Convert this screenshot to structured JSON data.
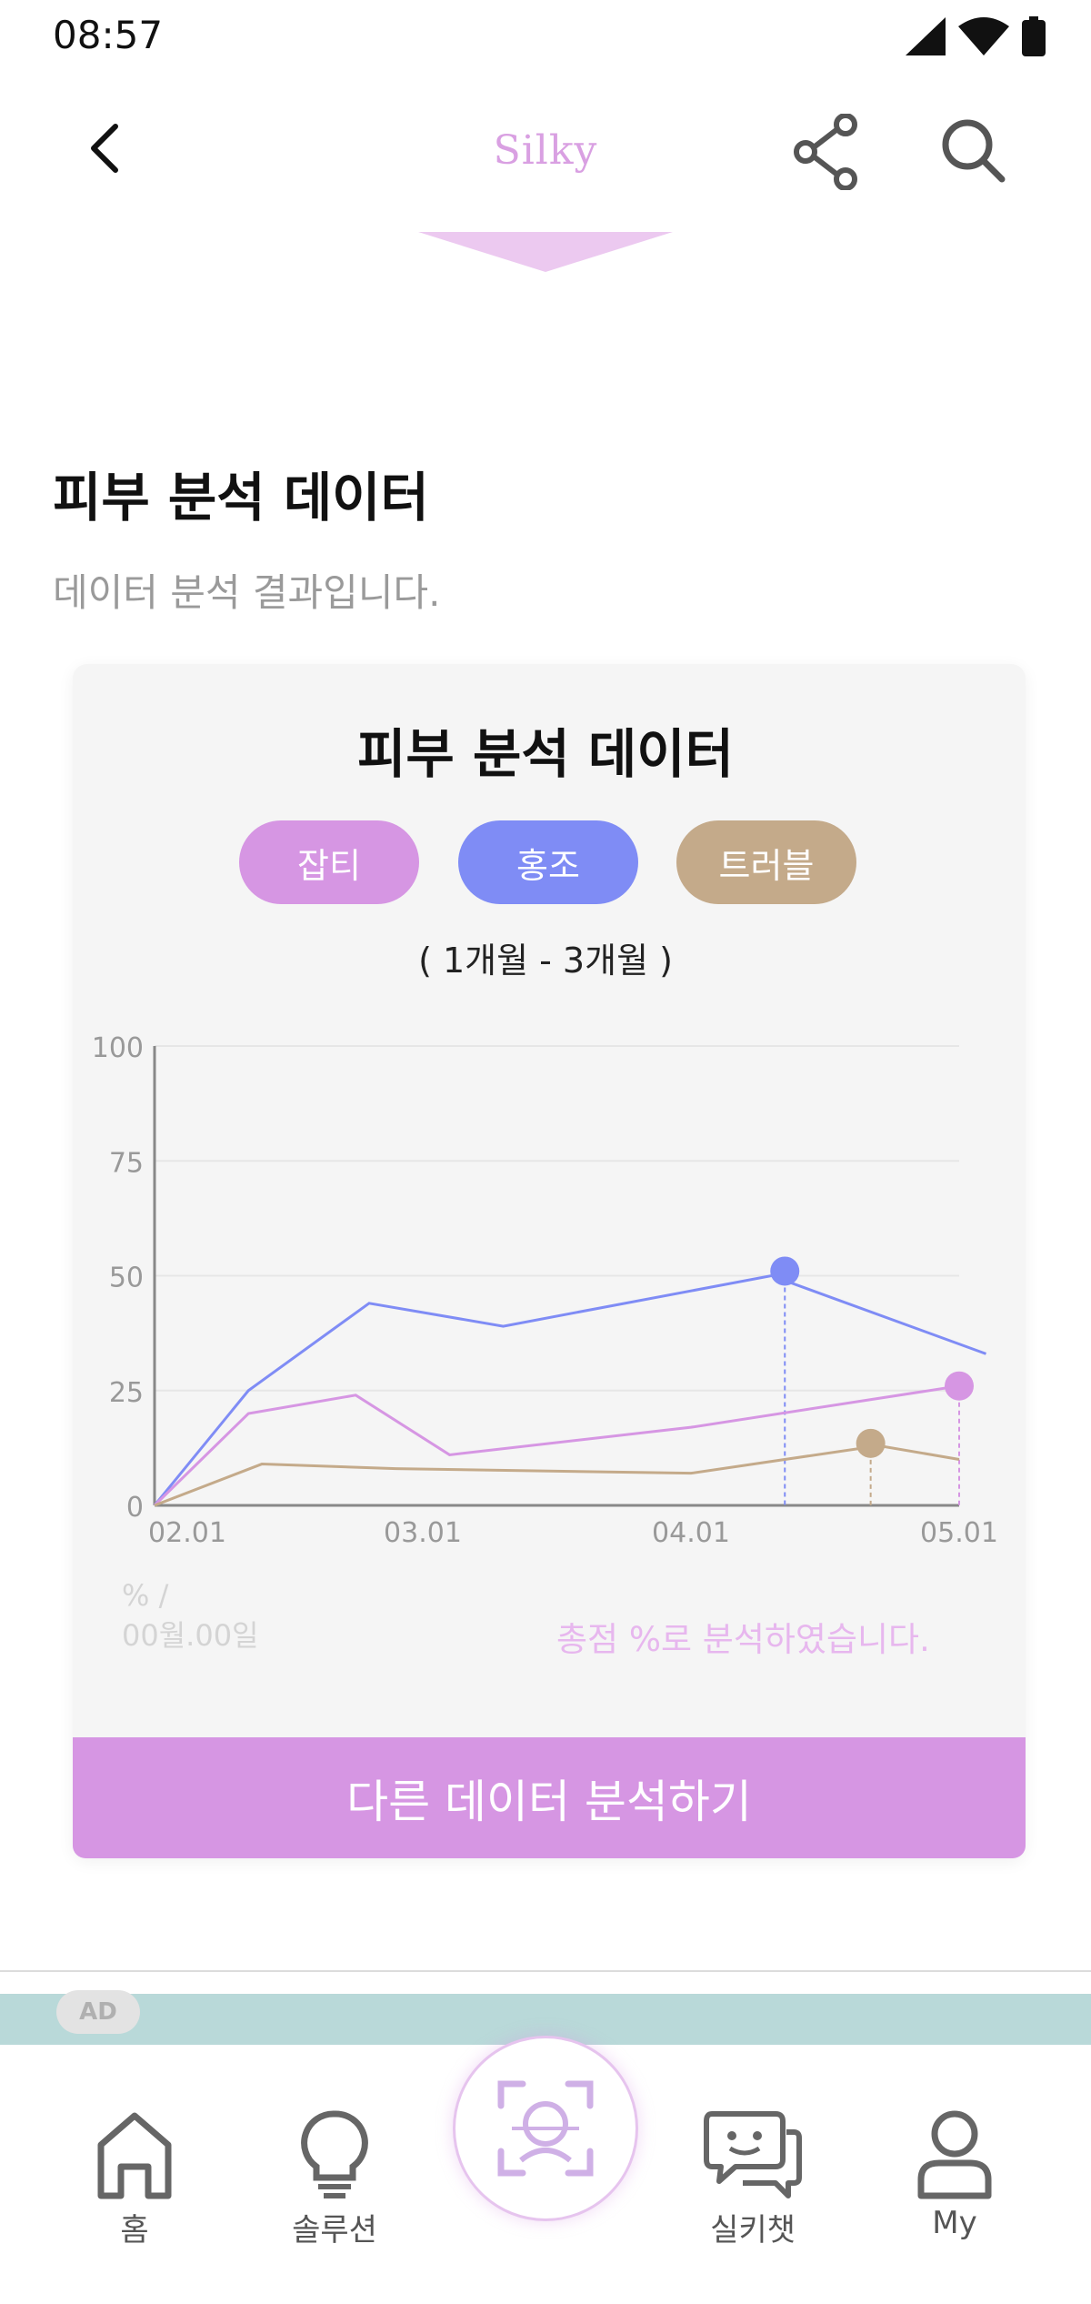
{
  "status": {
    "time": "08:57"
  },
  "appbar": {
    "title": "Silky"
  },
  "section": {
    "title": "피부 분석 데이터",
    "subtitle": "데이터 분석 결과입니다."
  },
  "card": {
    "title": "피부 분석 데이터",
    "pills": [
      {
        "label": "잡티",
        "color": "#d696e3"
      },
      {
        "label": "홍조",
        "color": "#7f8cf5"
      },
      {
        "label": "트러블",
        "color": "#c4aa8a"
      }
    ],
    "range": "( 1개월 - 3개월 )",
    "footer_left_1": "% /",
    "footer_left_2": "00월.00일",
    "footer_right": "총점 %로 분석하였습니다.",
    "cta_label": "다른 데이터 분석하기"
  },
  "chart_data": {
    "type": "line",
    "x": [
      "02.01",
      "02.10",
      "02.24",
      "03.10",
      "04.01",
      "04.08",
      "04.28",
      "05.01"
    ],
    "x_ticks": [
      "02.01",
      "03.01",
      "04.01",
      "05.01"
    ],
    "ylim": [
      0,
      100
    ],
    "y_ticks": [
      0,
      25,
      50,
      75,
      100
    ],
    "grid": true,
    "series": [
      {
        "name": "홍조",
        "color": "#7f8cf5",
        "points": [
          [
            0,
            0
          ],
          [
            0.35,
            25
          ],
          [
            0.8,
            44
          ],
          [
            1.3,
            39
          ],
          [
            2.3,
            50
          ],
          [
            3.1,
            33
          ]
        ],
        "highlight": [
          2.35,
          51
        ]
      },
      {
        "name": "잡티",
        "color": "#d696e3",
        "points": [
          [
            0,
            0
          ],
          [
            0.35,
            20
          ],
          [
            0.75,
            24
          ],
          [
            1.1,
            11
          ],
          [
            2.0,
            17
          ],
          [
            3.0,
            26
          ]
        ],
        "highlight": [
          3.0,
          26
        ]
      },
      {
        "name": "트러블",
        "color": "#c4aa8a",
        "points": [
          [
            0,
            0
          ],
          [
            0.4,
            9
          ],
          [
            0.9,
            8
          ],
          [
            2.0,
            7
          ],
          [
            2.7,
            13
          ],
          [
            3.0,
            10
          ]
        ],
        "highlight": [
          2.67,
          13.5
        ]
      }
    ]
  },
  "ad": {
    "badge": "AD"
  },
  "nav": [
    {
      "label": "홈",
      "icon": "home-icon"
    },
    {
      "label": "솔루션",
      "icon": "lightbulb-icon"
    },
    {
      "label": "",
      "icon": "face-scan-icon"
    },
    {
      "label": "실키챗",
      "icon": "chat-icon"
    },
    {
      "label": "My",
      "icon": "user-icon"
    }
  ]
}
